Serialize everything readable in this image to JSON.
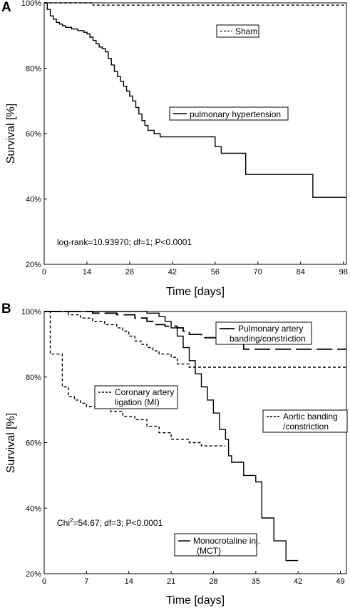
{
  "chart_data": [
    {
      "type": "line",
      "step": true,
      "panel_label": "A",
      "xlabel": "Time [days]",
      "ylabel": "Survival [%]",
      "xlim": [
        0,
        99
      ],
      "ylim": [
        20,
        100
      ],
      "xticks": [
        0,
        14,
        28,
        42,
        56,
        70,
        84,
        98
      ],
      "yticks": [
        20,
        40,
        60,
        80,
        100
      ],
      "ytick_labels": [
        "20%",
        "40%",
        "60%",
        "80%",
        "100%"
      ],
      "grid": false,
      "annotation": "log-rank=10.93970; df=1; P<0.0001",
      "series": [
        {
          "name": "Sham",
          "style": "dashed",
          "points": [
            [
              0,
              100
            ],
            [
              16,
              100
            ],
            [
              16,
              99.3
            ],
            [
              99,
              99.3
            ]
          ]
        },
        {
          "name": "pulmonary hypertension",
          "style": "solid",
          "points": [
            [
              0,
              100
            ],
            [
              1,
              98
            ],
            [
              2,
              96
            ],
            [
              3,
              95
            ],
            [
              4,
              94
            ],
            [
              5,
              93.5
            ],
            [
              6,
              93
            ],
            [
              7,
              92.5
            ],
            [
              9,
              92
            ],
            [
              11,
              91.5
            ],
            [
              13,
              91
            ],
            [
              14,
              90.5
            ],
            [
              15,
              89.5
            ],
            [
              16,
              88.5
            ],
            [
              17,
              87.5
            ],
            [
              18,
              86.5
            ],
            [
              19,
              86
            ],
            [
              20,
              85
            ],
            [
              21,
              83
            ],
            [
              22,
              81
            ],
            [
              23,
              79
            ],
            [
              24,
              77.5
            ],
            [
              25,
              76
            ],
            [
              26,
              74.5
            ],
            [
              27,
              73
            ],
            [
              28,
              71.5
            ],
            [
              29,
              70
            ],
            [
              30,
              68
            ],
            [
              31,
              66
            ],
            [
              32,
              64
            ],
            [
              33,
              62.5
            ],
            [
              34,
              61
            ],
            [
              36,
              60
            ],
            [
              38,
              59
            ],
            [
              56,
              56
            ],
            [
              58,
              54
            ],
            [
              66,
              47.5
            ],
            [
              88,
              40.5
            ],
            [
              99,
              40.5
            ]
          ]
        }
      ]
    },
    {
      "type": "line",
      "step": true,
      "panel_label": "B",
      "xlabel": "Time [days]",
      "ylabel": "Survival [%]",
      "xlim": [
        0,
        50
      ],
      "ylim": [
        20,
        100
      ],
      "xticks": [
        0,
        7,
        14,
        21,
        28,
        35,
        42,
        49
      ],
      "yticks": [
        20,
        40,
        60,
        80,
        100
      ],
      "ytick_labels": [
        "20%",
        "40%",
        "60%",
        "80%",
        "100%"
      ],
      "grid": false,
      "annotation_prefix": "Chi",
      "annotation_sup": "2",
      "annotation_suffix": "=54.67; df=3; P<0.0001",
      "series": [
        {
          "name": "Pulmonary artery banding/constriction",
          "label_lines": [
            "Pulmonary artery",
            "banding/constriction"
          ],
          "style": "longdash",
          "points": [
            [
              0,
              100
            ],
            [
              8,
              99.5
            ],
            [
              12,
              99
            ],
            [
              15,
              98
            ],
            [
              17,
              97
            ],
            [
              18,
              96
            ],
            [
              20,
              95.5
            ],
            [
              22,
              95
            ],
            [
              23,
              94
            ],
            [
              24,
              93
            ],
            [
              26,
              92
            ],
            [
              29,
              91.5
            ],
            [
              32,
              91
            ],
            [
              33,
              88.5
            ],
            [
              50,
              88.5
            ]
          ]
        },
        {
          "name": "Aortic banding/constriction",
          "label_lines": [
            "Aortic banding",
            "/constriction"
          ],
          "style": "dashed",
          "points": [
            [
              0,
              100
            ],
            [
              4,
              99
            ],
            [
              6,
              98
            ],
            [
              8,
              97
            ],
            [
              10,
              96
            ],
            [
              12,
              95
            ],
            [
              13,
              94
            ],
            [
              14,
              92.5
            ],
            [
              15,
              91
            ],
            [
              16,
              90
            ],
            [
              17,
              89
            ],
            [
              18,
              88
            ],
            [
              19,
              87
            ],
            [
              21,
              86
            ],
            [
              22,
              84
            ],
            [
              24,
              83
            ],
            [
              50,
              83
            ]
          ]
        },
        {
          "name": "Coronary artery ligation (MI)",
          "label_lines": [
            "Coronary artery",
            "ligation (MI)"
          ],
          "style": "dashed",
          "points": [
            [
              0,
              100
            ],
            [
              1,
              87
            ],
            [
              3,
              77
            ],
            [
              4,
              74
            ],
            [
              5,
              73
            ],
            [
              6,
              72
            ],
            [
              7,
              71
            ],
            [
              9,
              70.5
            ],
            [
              11,
              69.5
            ],
            [
              13,
              68
            ],
            [
              15,
              67
            ],
            [
              17,
              65
            ],
            [
              19,
              63
            ],
            [
              21,
              61
            ],
            [
              24,
              60
            ],
            [
              26,
              59
            ],
            [
              30,
              59
            ]
          ]
        },
        {
          "name": "Monocrotaline inj. (MCT)",
          "label_lines": [
            "Monocrotaline inj.",
            "(MCT)"
          ],
          "style": "solid",
          "points": [
            [
              0,
              100
            ],
            [
              17,
              99.5
            ],
            [
              19,
              98.5
            ],
            [
              20,
              97
            ],
            [
              21,
              95
            ],
            [
              22,
              92.5
            ],
            [
              23,
              89
            ],
            [
              24,
              85
            ],
            [
              25,
              81
            ],
            [
              26,
              77
            ],
            [
              27,
              73
            ],
            [
              28,
              69
            ],
            [
              29,
              64
            ],
            [
              30,
              61
            ],
            [
              30.5,
              56
            ],
            [
              31,
              54
            ],
            [
              33,
              50
            ],
            [
              35,
              48
            ],
            [
              36,
              37
            ],
            [
              38,
              30
            ],
            [
              40,
              24
            ],
            [
              42,
              24
            ]
          ]
        }
      ]
    }
  ]
}
